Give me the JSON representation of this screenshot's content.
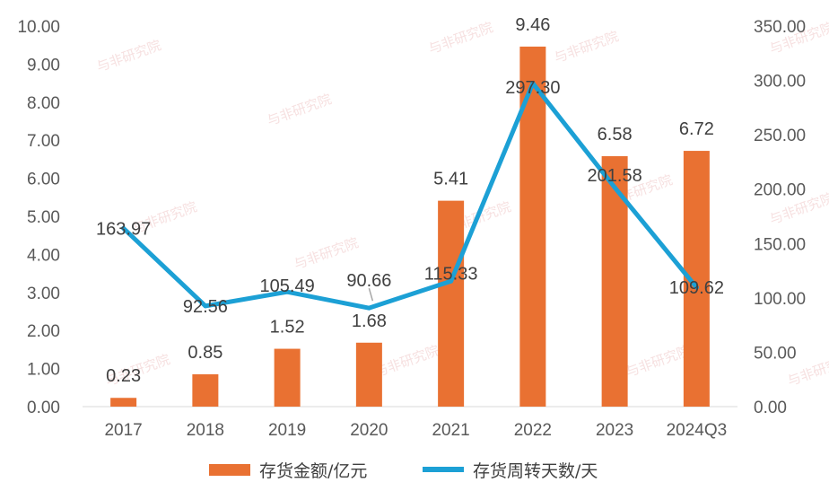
{
  "watermark_text": "与非研究院",
  "chart_data": {
    "type": "bar",
    "categories": [
      "2017",
      "2018",
      "2019",
      "2020",
      "2021",
      "2022",
      "2023",
      "2024Q3"
    ],
    "series": [
      {
        "name": "存货金额/亿元",
        "kind": "bar",
        "axis": "left",
        "color": "#E97132",
        "values": [
          0.23,
          0.85,
          1.52,
          1.68,
          5.41,
          9.46,
          6.58,
          6.72
        ],
        "labels": [
          "0.23",
          "0.85",
          "1.52",
          "1.68",
          "5.41",
          "9.46",
          "6.58",
          "6.72"
        ]
      },
      {
        "name": "存货周转天数/天",
        "kind": "line",
        "axis": "right",
        "color": "#1CA0D5",
        "values": [
          163.97,
          92.56,
          105.49,
          90.66,
          115.33,
          297.3,
          201.58,
          109.62
        ],
        "labels": [
          "163.97",
          "92.56",
          "105.49",
          "90.66",
          "115.33",
          "297.30",
          "201.58",
          "109.62"
        ]
      }
    ],
    "y_left": {
      "range": [
        0,
        10
      ],
      "ticks": [
        "0.00",
        "1.00",
        "2.00",
        "3.00",
        "4.00",
        "5.00",
        "6.00",
        "7.00",
        "8.00",
        "9.00",
        "10.00"
      ]
    },
    "y_right": {
      "range": [
        0,
        350
      ],
      "ticks": [
        "0.00",
        "50.00",
        "100.00",
        "150.00",
        "200.00",
        "250.00",
        "300.00",
        "350.00"
      ]
    },
    "grid": false,
    "legend_position": "bottom"
  }
}
